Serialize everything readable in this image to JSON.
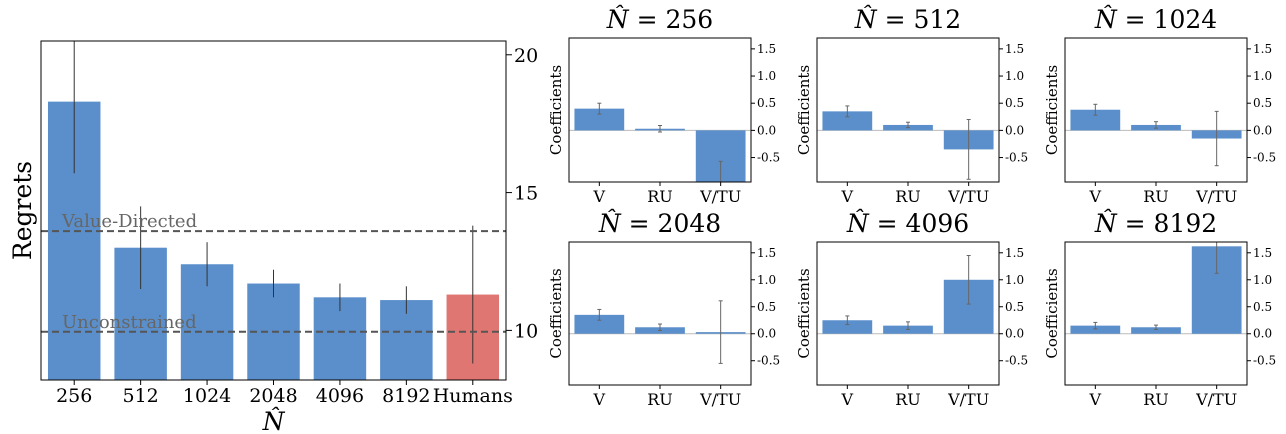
{
  "figure": {
    "colors": {
      "agent_bar": "#5b8fcb",
      "human_bar": "#e07672",
      "error": "#333333",
      "reference_line": "#555555"
    }
  },
  "chart_data": [
    {
      "type": "bar",
      "ylabel": "Regrets",
      "xlabel": "N̂",
      "categories": [
        "256",
        "512",
        "1024",
        "2048",
        "4096",
        "8192",
        "Humans"
      ],
      "values": [
        18.3,
        13.0,
        12.4,
        11.7,
        11.2,
        11.1,
        11.3
      ],
      "errors": [
        2.6,
        1.5,
        0.8,
        0.5,
        0.5,
        0.5,
        2.5
      ],
      "bar_colors": [
        "#5b8fcb",
        "#5b8fcb",
        "#5b8fcb",
        "#5b8fcb",
        "#5b8fcb",
        "#5b8fcb",
        "#e07672"
      ],
      "ylim": [
        8.2,
        20.5
      ],
      "yticks": [
        10,
        15,
        20
      ],
      "ytick_labels": [
        "10",
        "15",
        "20"
      ],
      "yaxis_side": "right",
      "reference_lines": [
        {
          "label": "Value-Directed",
          "y": 13.6
        },
        {
          "label": "Unconstrained",
          "y": 9.95
        }
      ]
    },
    {
      "type": "bar",
      "title": "N̂ = 256",
      "ylabel": "Coefficients",
      "categories": [
        "V",
        "RU",
        "V/TU"
      ],
      "values": [
        0.4,
        0.03,
        -0.95
      ],
      "errors": [
        0.1,
        0.06,
        0.38
      ],
      "ylim": [
        -0.95,
        1.7
      ],
      "yticks": [
        -0.5,
        0,
        0.5,
        1,
        1.5
      ],
      "ytick_labels": [
        "-0.5",
        "0.0",
        "0.5",
        "1.0",
        "1.5"
      ]
    },
    {
      "type": "bar",
      "title": "N̂ = 512",
      "ylabel": "Coefficients",
      "categories": [
        "V",
        "RU",
        "V/TU"
      ],
      "values": [
        0.35,
        0.1,
        -0.35
      ],
      "errors": [
        0.1,
        0.05,
        0.55
      ],
      "ylim": [
        -0.95,
        1.7
      ],
      "yticks": [
        -0.5,
        0,
        0.5,
        1,
        1.5
      ],
      "ytick_labels": [
        "-0.5",
        "0.0",
        "0.5",
        "1.0",
        "1.5"
      ]
    },
    {
      "type": "bar",
      "title": "N̂ = 1024",
      "ylabel": "Coefficients",
      "categories": [
        "V",
        "RU",
        "V/TU"
      ],
      "values": [
        0.38,
        0.1,
        -0.15
      ],
      "errors": [
        0.1,
        0.06,
        0.5
      ],
      "ylim": [
        -0.95,
        1.7
      ],
      "yticks": [
        -0.5,
        0,
        0.5,
        1,
        1.5
      ],
      "ytick_labels": [
        "-0.5",
        "0.0",
        "0.5",
        "1.0",
        "1.5"
      ]
    },
    {
      "type": "bar",
      "title": "N̂ = 2048",
      "ylabel": "Coefficients",
      "categories": [
        "V",
        "RU",
        "V/TU"
      ],
      "values": [
        0.35,
        0.12,
        0.03
      ],
      "errors": [
        0.1,
        0.06,
        0.58
      ],
      "ylim": [
        -0.95,
        1.7
      ],
      "yticks": [
        -0.5,
        0,
        0.5,
        1,
        1.5
      ],
      "ytick_labels": [
        "-0.5",
        "0.0",
        "0.5",
        "1.0",
        "1.5"
      ]
    },
    {
      "type": "bar",
      "title": "N̂ = 4096",
      "ylabel": "Coefficients",
      "categories": [
        "V",
        "RU",
        "V/TU"
      ],
      "values": [
        0.25,
        0.15,
        1.0
      ],
      "errors": [
        0.08,
        0.07,
        0.45
      ],
      "ylim": [
        -0.95,
        1.7
      ],
      "yticks": [
        -0.5,
        0,
        0.5,
        1,
        1.5
      ],
      "ytick_labels": [
        "-0.5",
        "0.0",
        "0.5",
        "1.0",
        "1.5"
      ]
    },
    {
      "type": "bar",
      "title": "N̂ = 8192",
      "ylabel": "Coefficients",
      "categories": [
        "V",
        "RU",
        "V/TU"
      ],
      "values": [
        0.15,
        0.12,
        1.62
      ],
      "errors": [
        0.06,
        0.04,
        0.5
      ],
      "ylim": [
        -0.95,
        1.7
      ],
      "yticks": [
        -0.5,
        0,
        0.5,
        1,
        1.5
      ],
      "ytick_labels": [
        "-0.5",
        "0.0",
        "0.5",
        "1.0",
        "1.5"
      ]
    }
  ]
}
